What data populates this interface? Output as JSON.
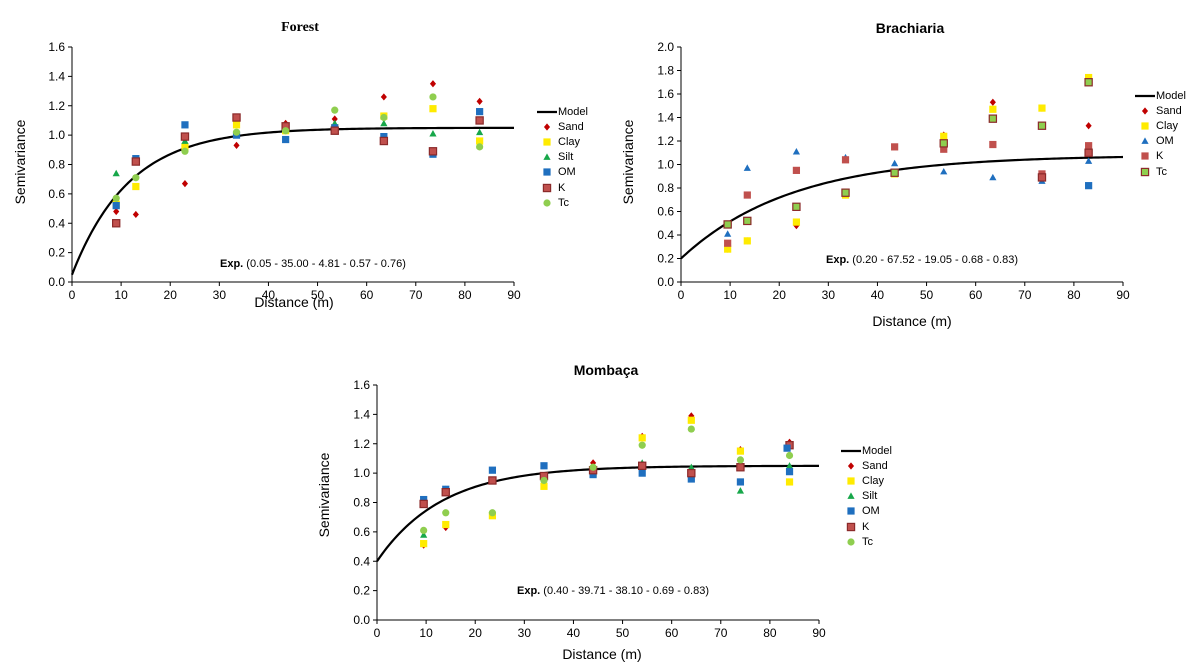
{
  "colors": {
    "Sand": "#c00000",
    "Clay": "#ffeb00",
    "Silt": "#17a74a",
    "OM": "#1f6fbf",
    "K": "#c0504d",
    "Tc": "#8fce4f",
    "Model": "#000000"
  },
  "chart_data": [
    {
      "type": "scatter",
      "title": "Forest",
      "xlabel": "Distance (m)",
      "ylabel": "Semivariance",
      "xlim": [
        0,
        90
      ],
      "ylim": [
        0,
        1.6
      ],
      "xticks": [
        "0",
        "10",
        "20",
        "30",
        "40",
        "50",
        "60",
        "70",
        "80",
        "90"
      ],
      "yticks": [
        "0.0",
        "0.2",
        "0.4",
        "0.6",
        "0.8",
        "1.0",
        "1.2",
        "1.4",
        "1.6"
      ],
      "annotation": {
        "label": "Exp.",
        "text": " (0.05 - 35.00 - 4.81 - 0.57 - 0.76)"
      },
      "model": {
        "name": "Model",
        "nugget": 0.05,
        "sill": 1.05,
        "range": 35.0
      },
      "legend_position": "right",
      "series": [
        {
          "name": "Sand",
          "marker": "diamond",
          "x": [
            9,
            13,
            23,
            33.5,
            43.5,
            53.5,
            63.5,
            73.5,
            83
          ],
          "y": [
            0.48,
            0.46,
            0.67,
            0.93,
            1.08,
            1.11,
            1.26,
            1.35,
            1.23
          ]
        },
        {
          "name": "Clay",
          "marker": "square",
          "x": [
            9,
            13,
            23,
            33.5,
            43.5,
            53.5,
            63.5,
            73.5,
            83
          ],
          "y": [
            0.53,
            0.65,
            0.92,
            1.07,
            1.03,
            1.05,
            1.13,
            1.18,
            0.96
          ]
        },
        {
          "name": "Silt",
          "marker": "triangle",
          "x": [
            9,
            13,
            23,
            33.5,
            43.5,
            53.5,
            63.5,
            73.5,
            83
          ],
          "y": [
            0.74,
            0.82,
            0.96,
            1.01,
            1.05,
            1.08,
            1.08,
            1.01,
            1.02
          ]
        },
        {
          "name": "OM",
          "marker": "square",
          "x": [
            9,
            13,
            23,
            33.5,
            43.5,
            53.5,
            63.5,
            73.5,
            83
          ],
          "y": [
            0.52,
            0.84,
            1.07,
            1.0,
            0.97,
            1.05,
            0.99,
            0.87,
            1.16
          ]
        },
        {
          "name": "K",
          "marker": "boxed",
          "x": [
            9,
            13,
            23,
            33.5,
            43.5,
            53.5,
            63.5,
            73.5,
            83
          ],
          "y": [
            0.4,
            0.82,
            0.99,
            1.12,
            1.06,
            1.03,
            0.96,
            0.89,
            1.1
          ]
        },
        {
          "name": "Tc",
          "marker": "circle",
          "x": [
            9,
            13,
            23,
            33.5,
            43.5,
            53.5,
            63.5,
            73.5,
            83
          ],
          "y": [
            0.57,
            0.71,
            0.89,
            1.02,
            1.03,
            1.17,
            1.12,
            1.26,
            0.92
          ]
        }
      ]
    },
    {
      "type": "scatter",
      "title": "Brachiaria",
      "xlabel": "Distance (m)",
      "ylabel": "Semivariance",
      "xlim": [
        0,
        90
      ],
      "ylim": [
        0,
        2.0
      ],
      "xticks": [
        "0",
        "10",
        "20",
        "30",
        "40",
        "50",
        "60",
        "70",
        "80",
        "90"
      ],
      "yticks": [
        "0.0",
        "0.2",
        "0.4",
        "0.6",
        "0.8",
        "1.0",
        "1.2",
        "1.4",
        "1.6",
        "1.8",
        "2.0"
      ],
      "annotation": {
        "label": "Exp.",
        "text": " (0.20 - 67.52 - 19.05 - 0.68 - 0.83)"
      },
      "model": {
        "name": "Model",
        "nugget": 0.2,
        "sill": 1.08,
        "range": 67.52
      },
      "legend_position": "right",
      "series": [
        {
          "name": "Sand",
          "marker": "diamond",
          "x": [
            9.5,
            13.5,
            23.5,
            33.5,
            43.5,
            53.5,
            63.5,
            73.5,
            83
          ],
          "y": [
            0.28,
            0.35,
            0.48,
            0.74,
            0.92,
            1.25,
            1.53,
            1.48,
            1.33
          ]
        },
        {
          "name": "Clay",
          "marker": "square",
          "x": [
            9.5,
            13.5,
            23.5,
            33.5,
            43.5,
            53.5,
            63.5,
            73.5,
            83
          ],
          "y": [
            0.28,
            0.35,
            0.51,
            0.74,
            0.92,
            1.24,
            1.47,
            1.48,
            1.74
          ]
        },
        {
          "name": "OM",
          "marker": "triangle",
          "x": [
            9.5,
            13.5,
            23.5,
            33.5,
            43.5,
            53.5,
            63.5,
            73.5,
            83
          ],
          "y": [
            0.41,
            0.97,
            1.11,
            1.06,
            1.01,
            0.94,
            0.89,
            0.86,
            1.03
          ]
        },
        {
          "name": "K",
          "marker": "square",
          "x": [
            9.5,
            13.5,
            23.5,
            33.5,
            43.5,
            53.5,
            63.5,
            73.5,
            83
          ],
          "y": [
            0.33,
            0.74,
            0.95,
            1.04,
            1.15,
            1.13,
            1.17,
            0.92,
            1.16
          ]
        },
        {
          "name": "Tc",
          "marker": "boxed",
          "x": [
            9.5,
            13.5,
            23.5,
            33.5,
            43.5,
            53.5,
            63.5,
            73.5,
            83
          ],
          "y": [
            0.49,
            0.52,
            0.64,
            0.76,
            0.93,
            1.18,
            1.39,
            1.33,
            1.7
          ]
        },
        {
          "name": "",
          "marker": "square",
          "legend": false,
          "color_key": "OM",
          "x": [
            83
          ],
          "y": [
            0.82
          ]
        },
        {
          "name": "",
          "marker": "boxed",
          "legend": false,
          "color_key": "K",
          "x": [
            73.5,
            83
          ],
          "y": [
            0.89,
            1.1
          ]
        }
      ]
    },
    {
      "type": "scatter",
      "title": "Mombaça",
      "xlabel": "Distance (m)",
      "ylabel": "Semivariance",
      "xlim": [
        0,
        90
      ],
      "ylim": [
        0,
        1.6
      ],
      "xticks": [
        "0",
        "10",
        "20",
        "30",
        "40",
        "50",
        "60",
        "70",
        "80",
        "90"
      ],
      "yticks": [
        "0.0",
        "0.2",
        "0.4",
        "0.6",
        "0.8",
        "1.0",
        "1.2",
        "1.4",
        "1.6"
      ],
      "annotation": {
        "label": "Exp.",
        "text": " (0.40 - 39.71 - 38.10 - 0.69 - 0.83)"
      },
      "model": {
        "name": "Model",
        "nugget": 0.4,
        "sill": 1.05,
        "range": 39.71
      },
      "legend_position": "right",
      "series": [
        {
          "name": "Sand",
          "marker": "diamond",
          "x": [
            9.5,
            14,
            23.5,
            34,
            44,
            54,
            64,
            74,
            84
          ],
          "y": [
            0.51,
            0.63,
            0.72,
            0.92,
            1.07,
            1.25,
            1.39,
            1.16,
            1.21
          ]
        },
        {
          "name": "Clay",
          "marker": "square",
          "x": [
            9.5,
            14,
            23.5,
            34,
            44,
            54,
            64,
            74,
            84
          ],
          "y": [
            0.52,
            0.65,
            0.71,
            0.91,
            1.0,
            1.24,
            1.36,
            1.15,
            0.94
          ]
        },
        {
          "name": "Silt",
          "marker": "triangle",
          "x": [
            9.5,
            14,
            23.5,
            34,
            44,
            54,
            64,
            74,
            84
          ],
          "y": [
            0.58,
            0.89,
            0.95,
            1.05,
            1.0,
            1.07,
            1.04,
            0.88,
            1.05
          ]
        },
        {
          "name": "OM",
          "marker": "square",
          "x": [
            9.5,
            14,
            23.5,
            34,
            44,
            54,
            64,
            74,
            84
          ],
          "y": [
            0.82,
            0.89,
            1.02,
            1.05,
            0.99,
            1.0,
            0.96,
            0.94,
            1.01
          ]
        },
        {
          "name": "K",
          "marker": "boxed",
          "x": [
            9.5,
            14,
            23.5,
            34,
            44,
            54,
            64,
            74,
            84
          ],
          "y": [
            0.79,
            0.87,
            0.95,
            0.98,
            1.02,
            1.05,
            1.0,
            1.04,
            1.19
          ]
        },
        {
          "name": "Tc",
          "marker": "circle",
          "x": [
            9.5,
            14,
            23.5,
            34,
            44,
            54,
            64,
            74,
            84
          ],
          "y": [
            0.61,
            0.73,
            0.73,
            0.95,
            1.04,
            1.19,
            1.3,
            1.09,
            1.12
          ]
        },
        {
          "name": "",
          "marker": "square",
          "legend": false,
          "color_key": "OM",
          "x": [
            83.5
          ],
          "y": [
            1.17
          ]
        }
      ]
    }
  ]
}
